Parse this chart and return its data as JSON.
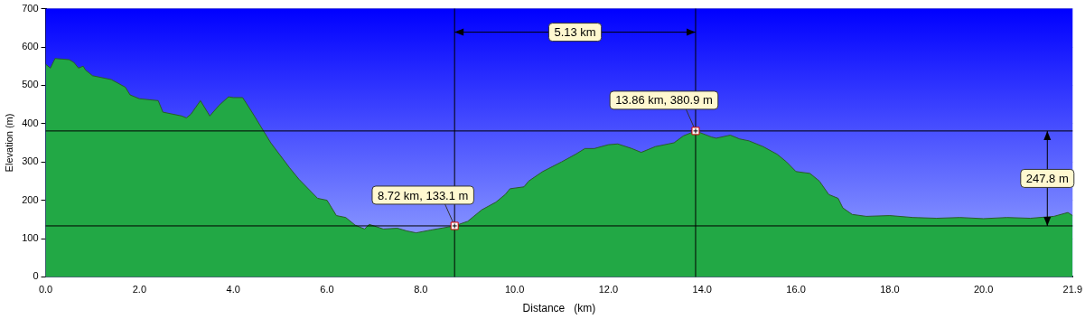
{
  "chart_data": {
    "type": "area",
    "xlabel": "Distance   (km)",
    "ylabel": "Elevation (m)",
    "x": [
      0,
      0.1,
      0.2,
      0.5,
      0.6,
      0.7,
      0.8,
      0.85,
      1.0,
      1.4,
      1.7,
      1.8,
      2.0,
      2.4,
      2.5,
      2.9,
      3.0,
      3.1,
      3.3,
      3.5,
      3.7,
      3.9,
      4.0,
      4.2,
      4.4,
      4.8,
      5.2,
      5.4,
      5.8,
      6.0,
      6.2,
      6.4,
      6.6,
      6.8,
      6.9,
      7.2,
      7.5,
      7.7,
      7.9,
      8.2,
      8.72,
      9.0,
      9.3,
      9.6,
      9.8,
      9.9,
      10.2,
      10.3,
      10.6,
      11.0,
      11.3,
      11.5,
      11.7,
      12.0,
      12.2,
      12.5,
      12.7,
      13.0,
      13.4,
      13.6,
      13.86,
      14.2,
      14.3,
      14.6,
      14.8,
      15.0,
      15.3,
      15.6,
      15.8,
      16.0,
      16.3,
      16.5,
      16.7,
      16.9,
      17.0,
      17.2,
      17.5,
      18.0,
      18.5,
      19.0,
      19.5,
      20.0,
      20.5,
      21.0,
      21.5,
      21.8,
      21.9
    ],
    "series": [
      {
        "color": "#22a845",
        "values": [
          555,
          545,
          570,
          567,
          560,
          545,
          550,
          540,
          525,
          515,
          495,
          475,
          465,
          460,
          430,
          420,
          415,
          425,
          460,
          420,
          448,
          470,
          468,
          468,
          430,
          350,
          285,
          255,
          205,
          200,
          160,
          155,
          135,
          125,
          137,
          125,
          127,
          120,
          115,
          122,
          133.1,
          145,
          175,
          195,
          215,
          230,
          235,
          250,
          275,
          300,
          320,
          335,
          335,
          345,
          347,
          335,
          325,
          340,
          350,
          368,
          380.9,
          365,
          362,
          370,
          360,
          355,
          340,
          320,
          300,
          275,
          270,
          250,
          215,
          205,
          180,
          163,
          158,
          160,
          155,
          153,
          155,
          152,
          155,
          153,
          158,
          168,
          160
        ]
      }
    ],
    "xlim": [
      0,
      21.9
    ],
    "xticks": [
      {
        "value": 0,
        "label": "0.0"
      },
      {
        "value": 2,
        "label": "2.0"
      },
      {
        "value": 4,
        "label": "4.0"
      },
      {
        "value": 6,
        "label": "6.0"
      },
      {
        "value": 8,
        "label": "8.0"
      },
      {
        "value": 10,
        "label": "10.0"
      },
      {
        "value": 12,
        "label": "12.0"
      },
      {
        "value": 14,
        "label": "14.0"
      },
      {
        "value": 16,
        "label": "16.0"
      },
      {
        "value": 18,
        "label": "18.0"
      },
      {
        "value": 20,
        "label": "20.0"
      },
      {
        "value": 21.9,
        "label": "21.9"
      }
    ],
    "ylim": [
      0,
      700
    ],
    "yticks": [
      0,
      100,
      200,
      300,
      400,
      500,
      600,
      700
    ],
    "grid": "y",
    "legend": false,
    "marker": "none",
    "ref_lines": [
      {
        "axis": "x",
        "value": 8.72,
        "color": "#000000"
      },
      {
        "axis": "x",
        "value": 13.86,
        "color": "#000000"
      },
      {
        "axis": "y",
        "value": 133.1,
        "color": "#000000"
      },
      {
        "axis": "y",
        "value": 380.9,
        "color": "#000000"
      }
    ],
    "annotations": [
      {
        "text": "8.72 km, 133.1 m",
        "x": 8.72,
        "y": 133.1
      },
      {
        "text": "13.86 km, 380.9 m",
        "x": 13.86,
        "y": 380.9
      },
      "5.13 km",
      "247.8 m"
    ]
  }
}
